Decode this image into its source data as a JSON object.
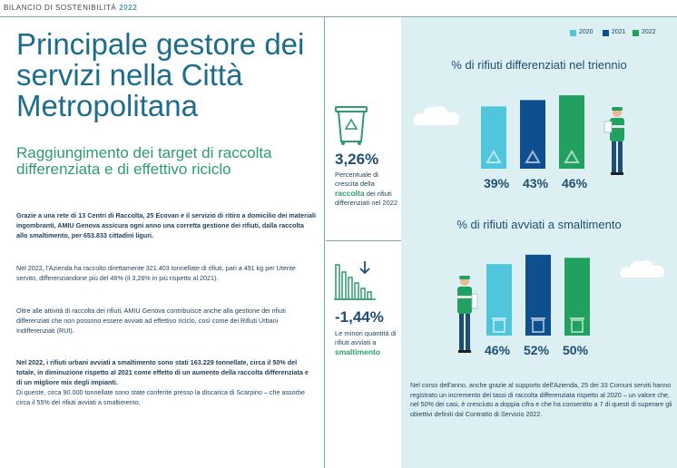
{
  "header": {
    "prefix": "BILANCIO DI SOSTENIBILITÀ",
    "year": "2022"
  },
  "main": {
    "title": "Principale gestore dei servizi nella Città Metropolitana",
    "subtitle": "Raggiungimento dei target di raccolta differenziata e di effettivo riciclo",
    "paragraphs": [
      "Grazie a una rete di 13 Centri di Raccolta, 25 Ecovan e il servizio di ritiro a domicilio dei materiali ingombranti, AMIU Genova assicura ogni anno una corretta gestione dei rifiuti, dalla raccolta allo smaltimento, per 653.833 cittadini liguri.",
      "Nel 2022, l'Azienda ha raccolto direttamente 321.403 tonnellate di rifiuti, pari a 491 kg per Utente servito, differenziandone più del 46% (il 3,26% in più rispetto al 2021).",
      "Oltre alle attività di raccolta dei rifiuti, AMIU Genova contribuisce anche alla gestione dei rifiuti differenziati che non possono essere avviati ad effettivo riciclo, così come dei Rifiuti Urbani Indifferenziati (RUI).",
      "Nel 2022, i rifiuti urbani avviati a smaltimento sono stati 163.229 tonnellate, circa il 50% del totale, in diminuzione rispetto al 2021 come effetto di un aumento della raccolta differenziata e di un migliore mix degli impianti.",
      "Di queste, circa 90.000 tonnellate sono state conferite presso la discarica di Scarpino – che assorbe circa il 55% dei rifiuti avviati a smaltimento."
    ]
  },
  "stats": [
    {
      "value": "3,26%",
      "desc_pre": "Percentuale di crescita della",
      "highlight": "raccolta",
      "desc_post": "dei rifiuti differenziati nel 2022"
    },
    {
      "value": "-1,44%",
      "desc_pre": "Le minori quantità di rifiuti avviati a",
      "highlight": "smaltimento",
      "desc_post": ""
    }
  ],
  "legend": [
    "2020",
    "2021",
    "2022"
  ],
  "colors": {
    "2020": "#4fc6dc",
    "2021": "#0d4f8f",
    "2022": "#22a060",
    "panel": "#dceff3",
    "title": "#1d6c8e",
    "subtitle": "#2d9c6e"
  },
  "chart_data": [
    {
      "type": "bar",
      "title": "% di rifiuti differenziati nel triennio",
      "categories": [
        "2020",
        "2021",
        "2022"
      ],
      "values": [
        39,
        43,
        46
      ],
      "labels": [
        "39%",
        "43%",
        "46%"
      ],
      "icon": "recycle-icon"
    },
    {
      "type": "bar",
      "title": "% di rifiuti avviati a smaltimento",
      "categories": [
        "2020",
        "2021",
        "2022"
      ],
      "values": [
        46,
        52,
        50
      ],
      "labels": [
        "46%",
        "52%",
        "50%"
      ],
      "icon": "trash-bin-icon"
    }
  ],
  "footnote": "Nel corso dell'anno, anche grazie al supporto dell'Azienda, 25 dei 33 Comuni serviti hanno registrato un incremento dei tassi di raccolta differenziata rispetto al 2020 – un valore che, nel 50% dei casi, è cresciuto a doppia cifra e che ha consentito a 7 di questi di superare gli obiettivi definiti dal Contratto di Servizio 2022."
}
